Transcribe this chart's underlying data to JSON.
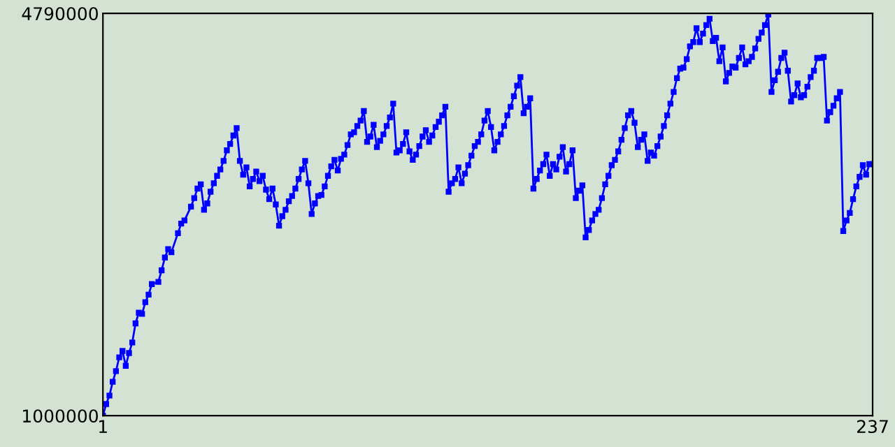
{
  "chart_data": {
    "type": "line",
    "x": [
      1,
      2,
      3,
      4,
      5,
      6,
      7,
      8,
      9,
      10,
      11,
      12,
      13,
      14,
      15,
      16,
      18,
      19,
      20,
      21,
      22,
      24,
      25,
      26,
      28,
      29,
      30,
      31,
      32,
      33,
      34,
      35,
      36,
      37,
      38,
      39,
      40,
      41,
      42,
      43,
      44,
      45,
      46,
      47,
      48,
      49,
      50,
      51,
      52,
      53,
      54,
      55,
      56,
      57,
      58,
      59,
      60,
      61,
      62,
      63,
      64,
      65,
      66,
      67,
      68,
      69,
      70,
      71,
      72,
      73,
      74,
      75,
      76,
      77,
      78,
      79,
      80,
      81,
      82,
      83,
      84,
      85,
      86,
      87,
      88,
      89,
      90,
      91,
      92,
      93,
      94,
      95,
      96,
      97,
      98,
      99,
      100,
      101,
      102,
      103,
      104,
      105,
      106,
      107,
      108,
      109,
      110,
      111,
      112,
      113,
      114,
      115,
      116,
      117,
      118,
      119,
      120,
      121,
      122,
      123,
      124,
      125,
      126,
      127,
      128,
      129,
      130,
      131,
      132,
      133,
      134,
      135,
      136,
      137,
      138,
      139,
      140,
      141,
      142,
      143,
      144,
      145,
      146,
      147,
      148,
      149,
      150,
      151,
      152,
      153,
      154,
      155,
      156,
      157,
      158,
      159,
      160,
      161,
      162,
      163,
      164,
      165,
      166,
      167,
      168,
      169,
      170,
      171,
      172,
      173,
      174,
      175,
      176,
      177,
      178,
      179,
      180,
      181,
      182,
      183,
      184,
      185,
      186,
      187,
      188,
      189,
      190,
      191,
      192,
      193,
      194,
      195,
      196,
      197,
      198,
      199,
      200,
      201,
      202,
      203,
      204,
      205,
      206,
      207,
      208,
      209,
      210,
      211,
      212,
      213,
      214,
      215,
      216,
      217,
      218,
      219,
      220,
      221,
      222,
      223,
      224,
      225,
      226,
      227,
      228,
      229,
      230,
      231,
      232,
      233,
      234,
      235,
      236,
      237
    ],
    "series": [
      {
        "color": "#0000ff",
        "values": [
          1000000,
          1110000,
          1190000,
          1320000,
          1420000,
          1550000,
          1610000,
          1470000,
          1590000,
          1690000,
          1870000,
          1970000,
          1960000,
          2070000,
          2140000,
          2240000,
          2260000,
          2370000,
          2490000,
          2570000,
          2540000,
          2720000,
          2810000,
          2840000,
          2970000,
          3050000,
          3140000,
          3180000,
          2940000,
          3000000,
          3110000,
          3190000,
          3260000,
          3320000,
          3400000,
          3500000,
          3560000,
          3640000,
          3710000,
          3400000,
          3270000,
          3340000,
          3160000,
          3230000,
          3300000,
          3210000,
          3260000,
          3130000,
          3040000,
          3140000,
          2990000,
          2790000,
          2880000,
          2940000,
          3020000,
          3070000,
          3140000,
          3230000,
          3320000,
          3400000,
          3190000,
          2900000,
          3000000,
          3070000,
          3080000,
          3160000,
          3260000,
          3350000,
          3410000,
          3310000,
          3420000,
          3460000,
          3550000,
          3650000,
          3670000,
          3730000,
          3780000,
          3870000,
          3580000,
          3630000,
          3740000,
          3530000,
          3590000,
          3650000,
          3730000,
          3810000,
          3940000,
          3480000,
          3500000,
          3560000,
          3670000,
          3490000,
          3410000,
          3460000,
          3540000,
          3630000,
          3690000,
          3580000,
          3640000,
          3720000,
          3770000,
          3830000,
          3910000,
          3110000,
          3190000,
          3230000,
          3340000,
          3190000,
          3280000,
          3360000,
          3450000,
          3540000,
          3580000,
          3650000,
          3780000,
          3870000,
          3720000,
          3500000,
          3580000,
          3650000,
          3730000,
          3830000,
          3910000,
          4010000,
          4110000,
          4190000,
          3850000,
          3910000,
          3990000,
          3140000,
          3230000,
          3310000,
          3370000,
          3460000,
          3260000,
          3370000,
          3320000,
          3440000,
          3530000,
          3300000,
          3370000,
          3500000,
          3050000,
          3120000,
          3170000,
          2680000,
          2750000,
          2840000,
          2900000,
          2940000,
          3050000,
          3180000,
          3260000,
          3360000,
          3410000,
          3490000,
          3600000,
          3710000,
          3830000,
          3870000,
          3760000,
          3530000,
          3600000,
          3650000,
          3400000,
          3480000,
          3450000,
          3540000,
          3630000,
          3730000,
          3830000,
          3940000,
          4050000,
          4180000,
          4270000,
          4280000,
          4360000,
          4480000,
          4520000,
          4650000,
          4520000,
          4600000,
          4680000,
          4740000,
          4530000,
          4560000,
          4340000,
          4470000,
          4150000,
          4230000,
          4290000,
          4280000,
          4370000,
          4470000,
          4310000,
          4340000,
          4380000,
          4460000,
          4550000,
          4610000,
          4680000,
          4780000,
          4050000,
          4160000,
          4240000,
          4370000,
          4420000,
          4250000,
          3960000,
          4020000,
          4130000,
          4000000,
          4020000,
          4100000,
          4190000,
          4250000,
          4370000,
          4370000,
          4380000,
          3780000,
          3860000,
          3920000,
          3990000,
          4050000,
          2740000,
          2840000,
          2910000,
          3040000,
          3160000,
          3250000,
          3360000,
          3270000,
          3370000,
          3370000
        ]
      }
    ],
    "xlim": [
      1,
      237
    ],
    "xticks": [
      1,
      237
    ],
    "ylim": [
      1000000,
      4790000
    ],
    "yticks": [
      1000000,
      4790000
    ],
    "marker": "square",
    "line_style": "solid",
    "grid": false,
    "legend": false
  }
}
